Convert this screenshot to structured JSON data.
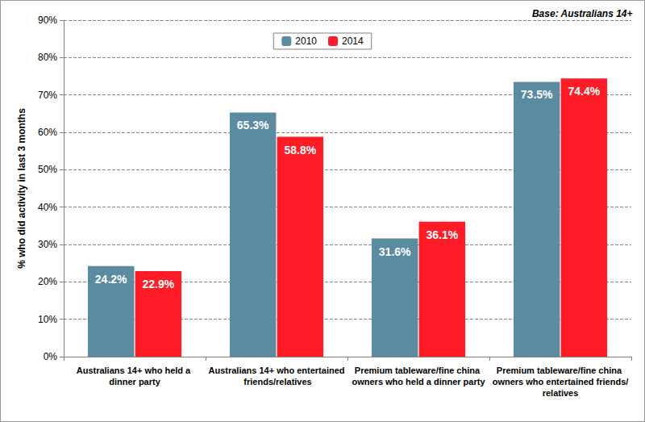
{
  "chart_data": {
    "type": "bar",
    "y_label": "% who did activity in last 3 months",
    "annotation": "Base: Australians 14+",
    "categories": [
      "Australians 14+ who held a dinner party",
      "Australians 14+ who entertained friends/relatives",
      "Premium tableware/fine china owners who held a dinner party",
      "Premium tableware/fine china owners who entertained friends/relatives"
    ],
    "series": [
      {
        "name": "2010",
        "color": "#5A8BA1",
        "values": [
          24.2,
          65.3,
          31.6,
          73.5
        ],
        "value_labels": [
          "24.2%",
          "65.3%",
          "31.6%",
          "73.5%"
        ]
      },
      {
        "name": "2014",
        "color": "#FF1C26",
        "values": [
          22.9,
          58.8,
          36.1,
          74.4
        ],
        "value_labels": [
          "22.9%",
          "58.8%",
          "36.1%",
          "74.4%"
        ]
      }
    ],
    "ylim": [
      0,
      90
    ],
    "yticks": [
      {
        "value": 0,
        "label": "0%"
      },
      {
        "value": 10,
        "label": "10%"
      },
      {
        "value": 20,
        "label": "20%"
      },
      {
        "value": 30,
        "label": "30%"
      },
      {
        "value": 40,
        "label": "40%"
      },
      {
        "value": 50,
        "label": "50%"
      },
      {
        "value": 60,
        "label": "60%"
      },
      {
        "value": 70,
        "label": "70%"
      },
      {
        "value": 80,
        "label": "80%"
      },
      {
        "value": 90,
        "label": "90%"
      }
    ],
    "grid": true,
    "legend": "top",
    "data_labels": true
  }
}
